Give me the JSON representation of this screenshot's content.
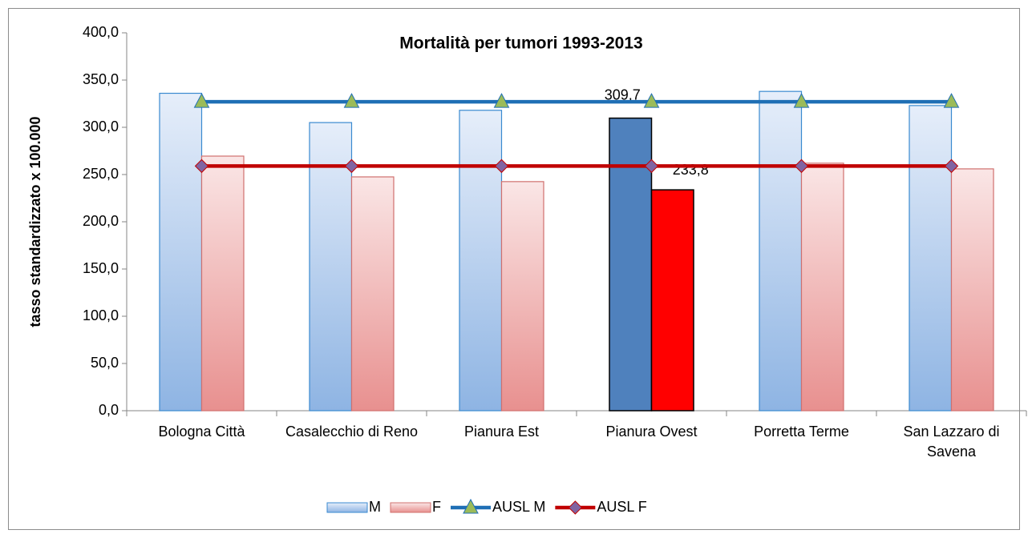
{
  "chart_data": {
    "type": "bar",
    "title": "Mortalità per tumori 1993-2013",
    "y_label": "tasso standardizzato x 100.000",
    "categories": [
      "Bologna Città",
      "Casalecchio di Reno",
      "Pianura Est",
      "Pianura Ovest",
      "Porretta Terme",
      "San Lazzaro di Savena"
    ],
    "highlight_category": "Pianura Ovest",
    "series": [
      {
        "name": "M",
        "type": "bar",
        "color": "#8eb4e3",
        "stroke": "#3a8ad0",
        "highlight_color": "#4f81bd",
        "values": [
          336,
          305,
          318,
          309.7,
          338,
          323
        ],
        "value_labels": [
          null,
          null,
          null,
          "309,7",
          null,
          null
        ]
      },
      {
        "name": "F",
        "type": "bar",
        "color": "#e8908f",
        "stroke": "#d0706e",
        "highlight_color": "#ff0000",
        "values": [
          269.5,
          247.5,
          242.5,
          233.8,
          262,
          256
        ],
        "value_labels": [
          null,
          null,
          null,
          "233,8",
          null,
          null
        ]
      },
      {
        "name": "AUSL M",
        "type": "line",
        "color": "#1f6fb5",
        "marker": "triangle",
        "marker_color": "#9bbb59",
        "values": [
          327,
          327,
          327,
          327,
          327,
          327
        ]
      },
      {
        "name": "AUSL F",
        "type": "line",
        "color": "#c00000",
        "marker": "diamond",
        "marker_color": "#8064a2",
        "values": [
          259,
          259,
          259,
          259,
          259,
          259
        ]
      }
    ],
    "ylim": [
      0,
      400
    ],
    "yticks": [
      {
        "value": 0,
        "label": "0,0"
      },
      {
        "value": 50,
        "label": "50,0"
      },
      {
        "value": 100,
        "label": "100,0"
      },
      {
        "value": 150,
        "label": "150,0"
      },
      {
        "value": 200,
        "label": "200,0"
      },
      {
        "value": 250,
        "label": "250,0"
      },
      {
        "value": 300,
        "label": "300,0"
      },
      {
        "value": 350,
        "label": "350,0"
      },
      {
        "value": 400,
        "label": "400,0"
      }
    ],
    "grid": false,
    "legend": "bottom"
  }
}
